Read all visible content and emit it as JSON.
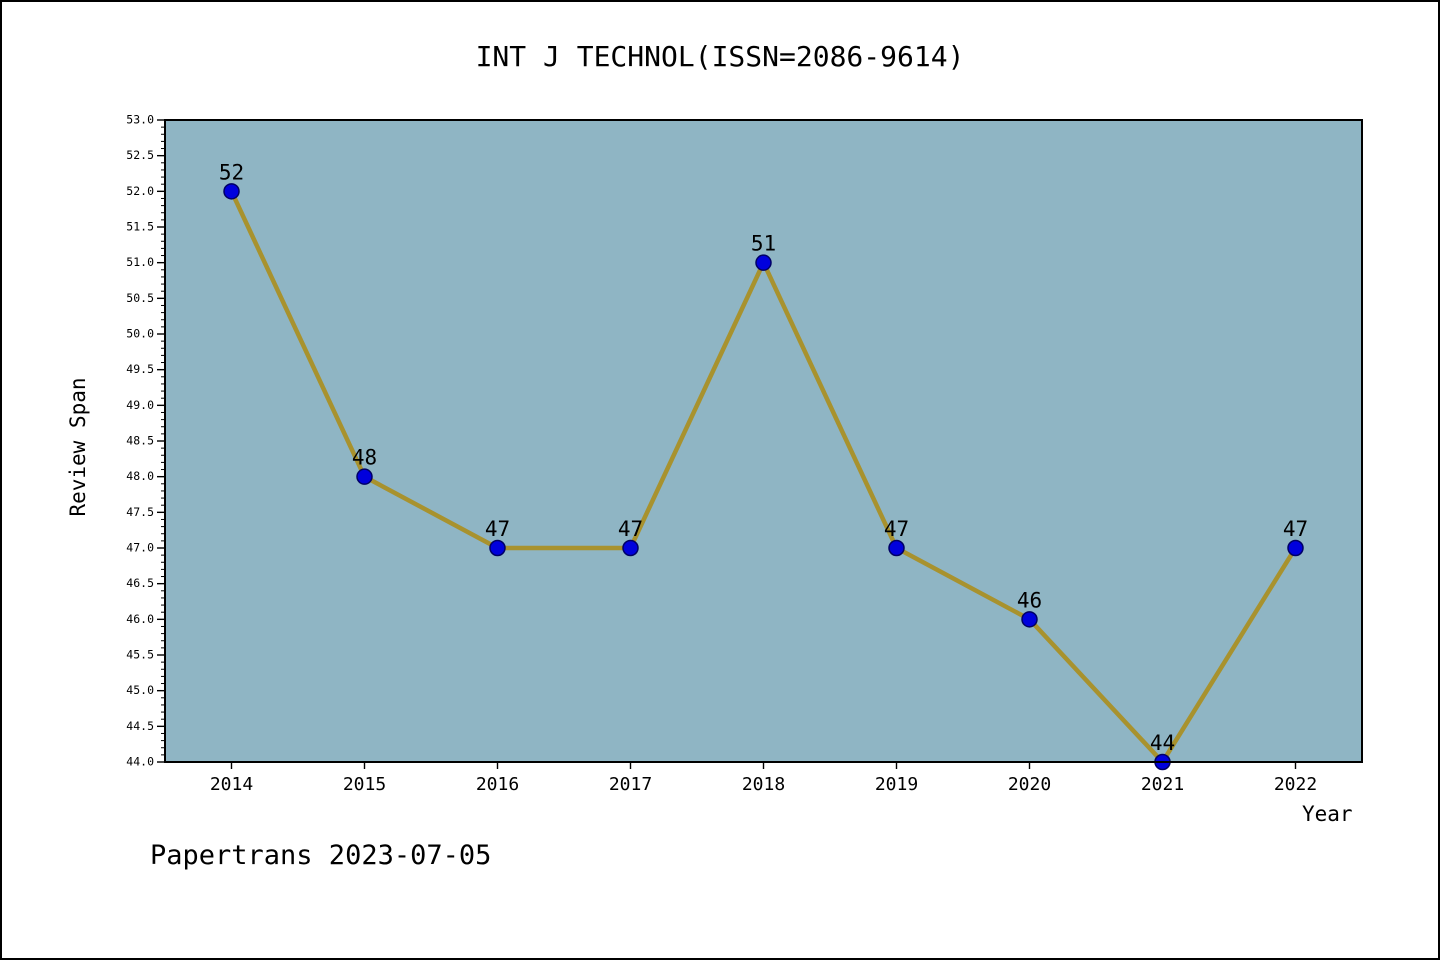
{
  "chart_data": {
    "type": "line",
    "title": "INT J TECHNOL(ISSN=2086-9614)",
    "xlabel": "Year",
    "ylabel": "Review Span",
    "x": [
      2014,
      2015,
      2016,
      2017,
      2018,
      2019,
      2020,
      2021,
      2022
    ],
    "values": [
      52,
      48,
      47,
      47,
      51,
      47,
      46,
      44,
      47
    ],
    "ylim": [
      44.0,
      53.0
    ],
    "y_major_step": 0.5,
    "y_minor_step": 0.1,
    "grid": false,
    "legend_position": "none",
    "colors": {
      "line": "#a8922e",
      "marker_fill": "#0000dd",
      "marker_edge": "#000066",
      "plot_bg": "#8fb5c4",
      "axis": "#000000",
      "text": "#000000"
    }
  },
  "footer": {
    "text": "Papertrans 2023-07-05"
  }
}
